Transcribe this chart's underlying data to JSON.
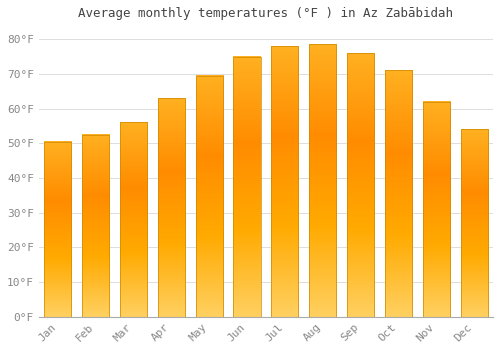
{
  "title": "Average monthly temperatures (°F ) in Az Zabābidah",
  "months": [
    "Jan",
    "Feb",
    "Mar",
    "Apr",
    "May",
    "Jun",
    "Jul",
    "Aug",
    "Sep",
    "Oct",
    "Nov",
    "Dec"
  ],
  "values": [
    50.5,
    52.5,
    56,
    63,
    69.5,
    75,
    78,
    78.5,
    76,
    71,
    62,
    54
  ],
  "bar_color_main": "#FFAA00",
  "bar_color_edge": "#CC8800",
  "background_color": "#FFFFFF",
  "grid_color": "#DDDDDD",
  "ylim": [
    0,
    84
  ],
  "yticks": [
    0,
    10,
    20,
    30,
    40,
    50,
    60,
    70,
    80
  ],
  "title_color": "#444444",
  "tick_label_color": "#888888",
  "title_fontsize": 9,
  "tick_fontsize": 8
}
